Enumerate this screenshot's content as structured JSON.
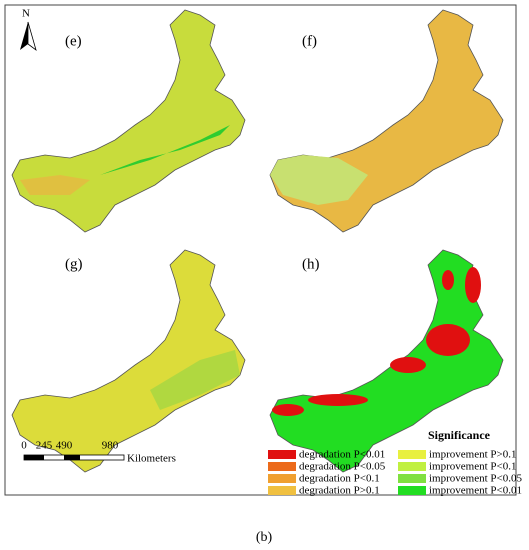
{
  "north": "N",
  "panels": [
    {
      "label": "(e)"
    },
    {
      "label": "(f)"
    },
    {
      "label": "(g)"
    },
    {
      "label": "(h)"
    }
  ],
  "scale": {
    "ticks": [
      "0",
      "245",
      "490",
      "980"
    ],
    "unit": "Kilometers"
  },
  "legend": {
    "title": "Significance",
    "items": [
      "degradation P<0.01",
      "degradation P<0.05",
      "degradation P<0.1",
      "degradation P>0.1",
      "improvement P>0.1",
      "improvement P<0.1",
      "improvement P<0.05",
      "improvement P<0.01"
    ]
  },
  "caption": "(b)"
}
